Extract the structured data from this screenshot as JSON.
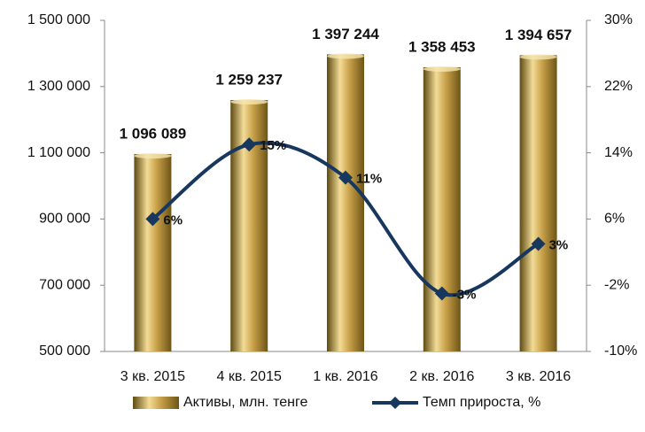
{
  "chart_data": {
    "type": "bar_line",
    "categories": [
      "3 кв. 2015",
      "4 кв. 2015",
      "1 кв. 2016",
      "2 кв. 2016",
      "3 кв. 2016"
    ],
    "series": [
      {
        "name": "Активы, млн. тенге",
        "type": "bar",
        "color": "#c9a24a",
        "values": [
          1096089,
          1259237,
          1397244,
          1358453,
          1394657
        ],
        "value_labels": [
          "1 096 089",
          "1 259 237",
          "1 397 244",
          "1 358 453",
          "1 394 657"
        ]
      },
      {
        "name": "Темп прироста, %",
        "type": "line",
        "axis": "y2",
        "color": "#17375e",
        "label_color": "#e8303a",
        "values": [
          6,
          15,
          11,
          -3,
          3
        ],
        "value_labels": [
          "6%",
          "15%",
          "11%",
          "-3%",
          "3%"
        ]
      }
    ],
    "ylim": [
      500000,
      1500000
    ],
    "yticks": [
      {
        "value": 500000,
        "label": "500 000"
      },
      {
        "value": 700000,
        "label": "700 000"
      },
      {
        "value": 900000,
        "label": "900 000"
      },
      {
        "value": 1100000,
        "label": "1 100 000"
      },
      {
        "value": 1300000,
        "label": "1 300 000"
      },
      {
        "value": 1500000,
        "label": "1 500 000"
      }
    ],
    "y2lim": [
      -10,
      30
    ],
    "y2ticks": [
      {
        "value": -10,
        "label": "-10%"
      },
      {
        "value": -2,
        "label": "-2%"
      },
      {
        "value": 6,
        "label": "6%"
      },
      {
        "value": 14,
        "label": "14%"
      },
      {
        "value": 22,
        "label": "22%"
      },
      {
        "value": 30,
        "label": "30%"
      }
    ],
    "legend": "bottom"
  }
}
